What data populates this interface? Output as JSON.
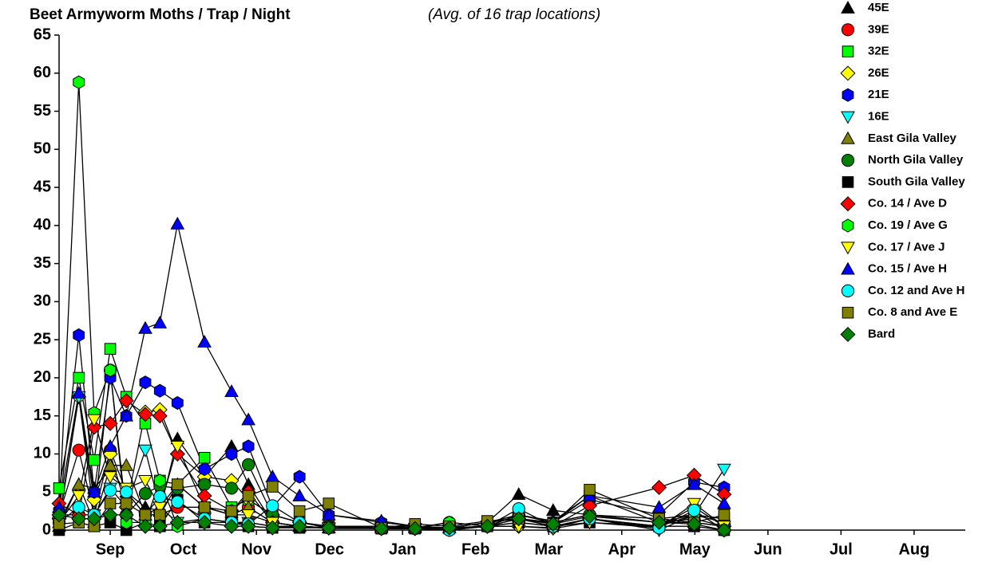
{
  "chart_data": {
    "type": "line",
    "title": "Beet Armyworm Moths / Trap / Night",
    "subtitle": "(Avg. of 16 trap locations)",
    "x": [
      -0.2,
      0.07,
      0.28,
      0.5,
      0.72,
      0.98,
      1.18,
      1.42,
      1.79,
      2.16,
      2.39,
      2.72,
      3.09,
      3.49,
      4.21,
      4.67,
      5.14,
      5.66,
      6.09,
      6.56,
      7.06,
      8.01,
      8.49,
      8.9
    ],
    "xlim": [
      -0.2,
      12.2
    ],
    "xticks": [
      {
        "value": 0.5,
        "label": "Sep"
      },
      {
        "value": 1.5,
        "label": "Oct"
      },
      {
        "value": 2.5,
        "label": "Nov"
      },
      {
        "value": 3.5,
        "label": "Dec"
      },
      {
        "value": 4.5,
        "label": "Jan"
      },
      {
        "value": 5.5,
        "label": "Feb"
      },
      {
        "value": 6.5,
        "label": "Mar"
      },
      {
        "value": 7.5,
        "label": "Apr"
      },
      {
        "value": 8.5,
        "label": "May"
      },
      {
        "value": 9.5,
        "label": "Jun"
      },
      {
        "value": 10.5,
        "label": "Jul"
      },
      {
        "value": 11.5,
        "label": "Aug"
      }
    ],
    "ylim": [
      0,
      65
    ],
    "yticks": [
      0,
      5,
      10,
      15,
      20,
      25,
      30,
      35,
      40,
      45,
      50,
      55,
      60,
      65
    ],
    "line_color": "#000000",
    "series": [
      {
        "name": "45E",
        "color": "#000000",
        "marker": "triangle-up",
        "values": [
          0.5,
          6,
          5.5,
          8,
          5,
          3,
          2.5,
          12,
          7,
          11,
          6,
          1,
          0.5,
          0.3,
          0.5,
          0.3,
          0.3,
          1,
          4.7,
          2.6,
          2,
          1.5,
          2,
          1.5
        ]
      },
      {
        "name": "39E",
        "color": "#ff0000",
        "marker": "circle",
        "values": [
          2,
          10.5,
          2,
          10.5,
          5,
          2,
          2,
          3,
          3,
          2,
          3,
          1,
          0.5,
          0.3,
          0.3,
          0.3,
          1,
          0.5,
          2,
          1,
          2,
          1,
          1.5,
          0.5
        ]
      },
      {
        "name": "32E",
        "color": "#00ff00",
        "marker": "square",
        "values": [
          5.5,
          20,
          9.2,
          23.8,
          17.5,
          14,
          6.5,
          6,
          9.5,
          3,
          4,
          2,
          1,
          0.5,
          0.5,
          0.5,
          0.3,
          1,
          1.5,
          1,
          4.5,
          1,
          2,
          1.5
        ]
      },
      {
        "name": "26E",
        "color": "#ffff00",
        "marker": "diamond",
        "values": [
          1.5,
          17.5,
          4,
          10,
          3,
          15.5,
          15.8,
          10,
          7,
          6.5,
          4,
          2,
          1,
          0.5,
          0.5,
          0.3,
          0.3,
          0.5,
          0.5,
          0.3,
          1.5,
          0.5,
          3,
          0.5
        ]
      },
      {
        "name": "21E",
        "color": "#0000ff",
        "marker": "hexagon",
        "values": [
          2.5,
          25.6,
          5,
          20,
          15,
          19.4,
          18.3,
          16.7,
          8,
          10,
          11,
          3,
          7,
          2,
          1,
          0.5,
          0.3,
          1,
          2,
          1,
          4,
          2,
          6.3,
          5.6
        ]
      },
      {
        "name": "16E",
        "color": "#00ffff",
        "marker": "triangle-down",
        "values": [
          1,
          17.5,
          2,
          5.5,
          3,
          10.5,
          3,
          1,
          1.5,
          1,
          1,
          0.5,
          0.5,
          0.2,
          0.2,
          0.2,
          0,
          0.5,
          1,
          0.5,
          1.5,
          0,
          2,
          8
        ]
      },
      {
        "name": "East Gila Valley",
        "color": "#808000",
        "marker": "triangle-up",
        "values": [
          1,
          6,
          1,
          8.5,
          8.5,
          2,
          3,
          6,
          3,
          2,
          3,
          1,
          0.5,
          0.3,
          0.3,
          0.3,
          0.3,
          1,
          1.5,
          1,
          2,
          1,
          1,
          0.5
        ]
      },
      {
        "name": "North Gila Valley",
        "color": "#008000",
        "marker": "circle",
        "values": [
          2,
          2,
          2,
          21,
          2,
          4.8,
          5.8,
          5.5,
          6,
          5.5,
          8.6,
          2,
          1,
          0.5,
          0.3,
          0.3,
          1,
          0.5,
          2,
          1,
          2,
          1,
          1,
          0.5
        ]
      },
      {
        "name": "South Gila Valley",
        "color": "#000000",
        "marker": "square",
        "values": [
          0,
          1,
          0.5,
          1,
          0,
          1,
          0.5,
          4,
          1,
          1,
          0.5,
          0.3,
          0.3,
          0.3,
          0.2,
          0.2,
          0.2,
          0.5,
          1,
          0.5,
          1,
          0.5,
          0.5,
          0
        ]
      },
      {
        "name": "Co. 14 / Ave D",
        "color": "#ff0000",
        "marker": "diamond",
        "values": [
          3.5,
          2,
          13.5,
          14,
          17,
          15.2,
          15,
          10,
          4.5,
          2.5,
          5,
          1,
          0.5,
          0.3,
          0.3,
          0.3,
          0.3,
          0.5,
          1.5,
          0.5,
          3.2,
          5.6,
          7.2,
          4.7
        ]
      },
      {
        "name": "Co. 19 / Ave G",
        "color": "#00ff00",
        "marker": "hexagon",
        "values": [
          1.5,
          58.8,
          15.4,
          21,
          1,
          1,
          6.5,
          0.5,
          1.5,
          1,
          1,
          0.5,
          0.5,
          0.3,
          0.3,
          0.2,
          1,
          0.5,
          1.5,
          0.5,
          1.5,
          0.5,
          2,
          1
        ]
      },
      {
        "name": "Co. 17 / Ave J",
        "color": "#ffff00",
        "marker": "triangle-down",
        "values": [
          1,
          4.5,
          14.5,
          7,
          5.5,
          6.5,
          3,
          11,
          3,
          2,
          2,
          1,
          0.5,
          0.3,
          0.3,
          0.2,
          0.2,
          0.5,
          0.5,
          0.2,
          1,
          0.3,
          3.5,
          0.5
        ]
      },
      {
        "name": "Co. 15 / Ave H",
        "color": "#0000ff",
        "marker": "triangle-up",
        "values": [
          3,
          18,
          5,
          11,
          15,
          26.5,
          27.2,
          40.2,
          24.7,
          18.2,
          14.5,
          7,
          4.5,
          2,
          1.2,
          0.5,
          0.3,
          1,
          2,
          1.2,
          4.5,
          3,
          6,
          3.5
        ]
      },
      {
        "name": "Co. 12 and Ave H",
        "color": "#00ffff",
        "marker": "circle",
        "values": [
          1,
          3,
          2,
          5.2,
          5,
          2,
          4.4,
          3.7,
          1.5,
          1,
          0.8,
          3.2,
          1,
          0.3,
          0.2,
          0.2,
          0,
          0.5,
          2.8,
          0.5,
          1.5,
          0.3,
          2.6,
          0
        ]
      },
      {
        "name": "Co. 8 and Ave E",
        "color": "#808000",
        "marker": "square",
        "values": [
          0.8,
          1,
          0.5,
          3.5,
          3.5,
          2,
          2,
          6,
          3,
          2.5,
          4.5,
          5.7,
          2.5,
          3.5,
          0.3,
          0.8,
          0.5,
          1.2,
          1.5,
          0.8,
          5.3,
          1.5,
          1,
          2
        ]
      },
      {
        "name": "Bard",
        "color": "#008000",
        "marker": "diamond",
        "values": [
          2,
          1.5,
          1.5,
          2,
          2,
          0.5,
          0.5,
          1,
          1,
          0.5,
          0.5,
          0.3,
          0.5,
          0.3,
          0.2,
          0.2,
          0.3,
          0.5,
          1.5,
          0.8,
          1.8,
          1,
          0.8,
          0
        ]
      }
    ]
  }
}
